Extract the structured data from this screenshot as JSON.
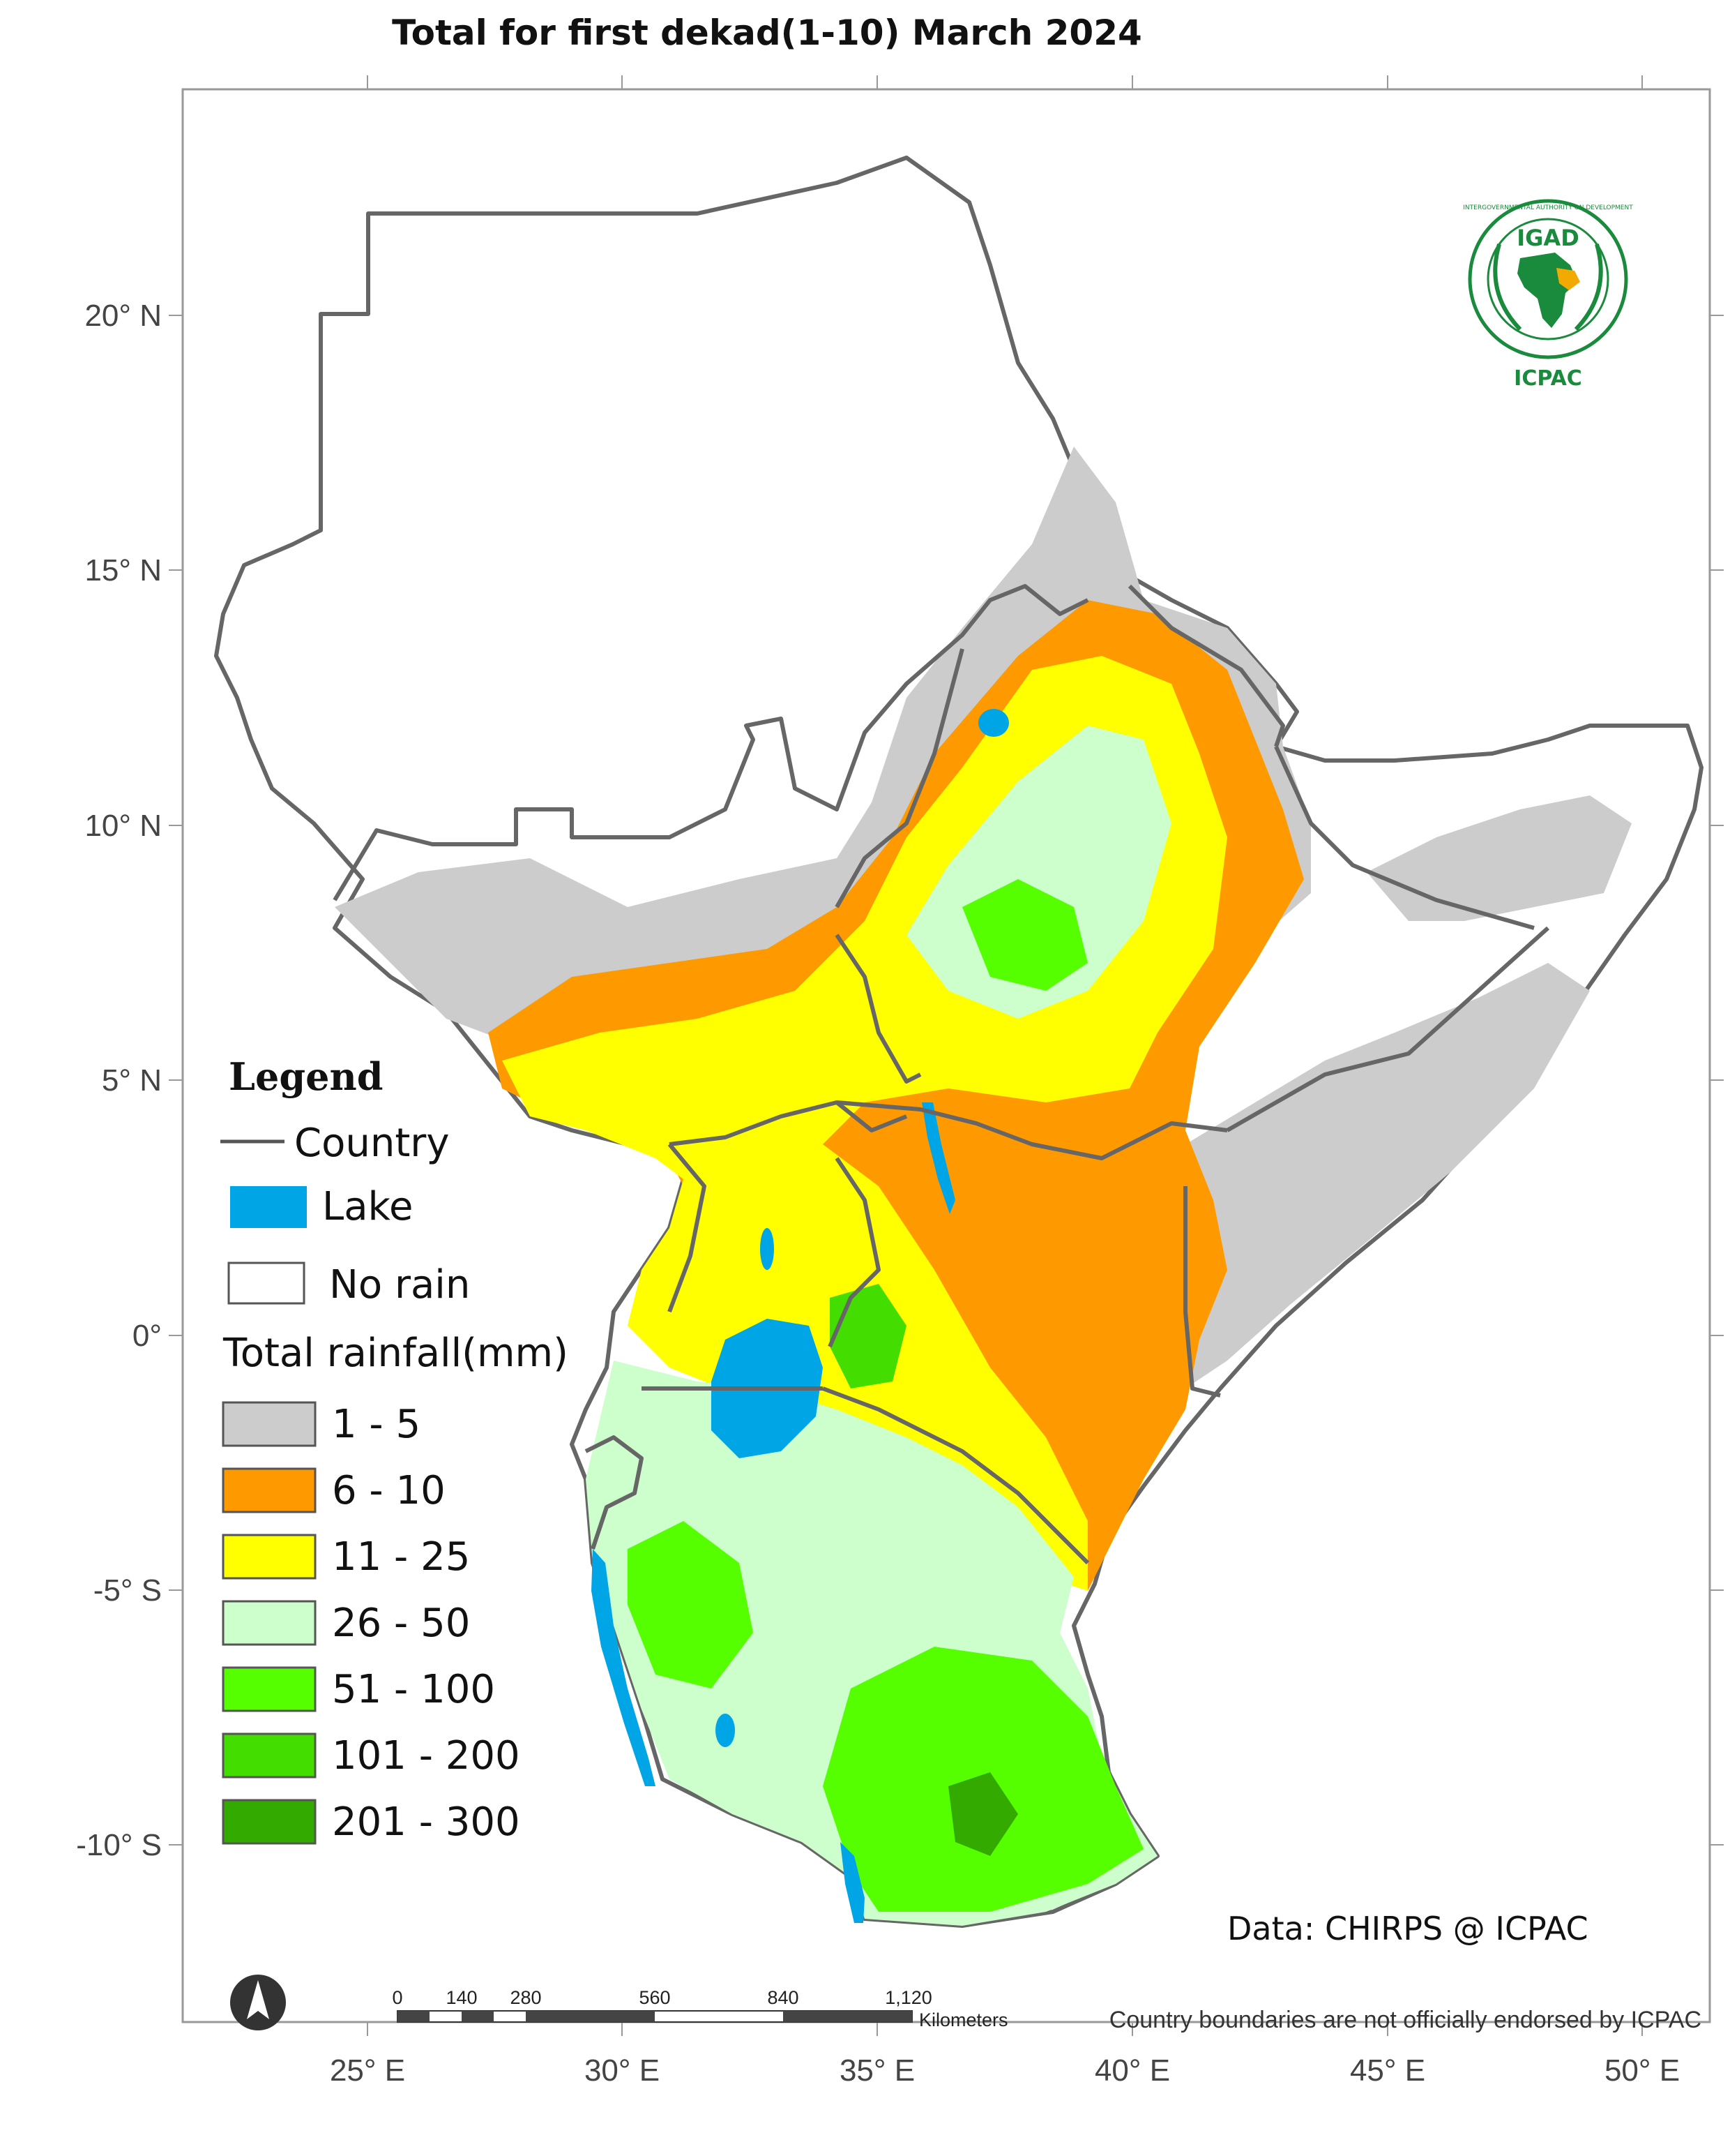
{
  "title": "Total  for  first dekad(1-10) March 2024",
  "axes": {
    "lon_labels": [
      "25° E",
      "30° E",
      "35° E",
      "40° E",
      "45° E",
      "50° E"
    ],
    "lat_labels": [
      "20° N",
      "15° N",
      "10° N",
      "5° N",
      "0°",
      "-5° S",
      "-10° S"
    ]
  },
  "legend": {
    "title": "Legend",
    "country_label": "Country",
    "lake_label": "Lake",
    "norain_label": "No rain",
    "rain_title": "Total rainfall(mm)",
    "classes": [
      {
        "label": "1 - 5",
        "color": "#cccccc"
      },
      {
        "label": "6 - 10",
        "color": "#ff9900"
      },
      {
        "label": "11 - 25",
        "color": "#ffff00"
      },
      {
        "label": "26 - 50",
        "color": "#ccffcc"
      },
      {
        "label": "51 - 100",
        "color": "#55ff00"
      },
      {
        "label": "101 - 200",
        "color": "#44dd00"
      },
      {
        "label": "201 - 300",
        "color": "#33aa00"
      }
    ],
    "lake_color": "#00a5e6"
  },
  "logo": {
    "top": "IGAD",
    "bottom": "ICPAC",
    "ring_text": "INTERGOVERNMENTAL AUTHORITY ON DEVELOPMENT"
  },
  "credit": "Data: CHIRPS @ ICPAC",
  "scalebar": {
    "ticks": [
      "0",
      "140",
      "280",
      "560",
      "840",
      "1,120"
    ],
    "unit": "Kilometers"
  },
  "disclaimer": "Country boundaries are not officially endorsed by ICPAC"
}
